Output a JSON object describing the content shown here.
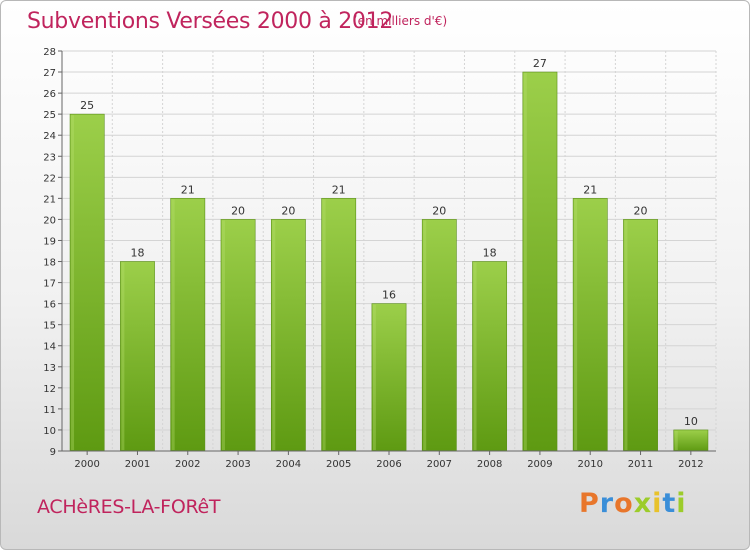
{
  "header": {
    "title": "Subventions Versées 2000 à 2012",
    "subtitle": "(en milliers d'€)"
  },
  "footer": {
    "commune": "ACHèRES-LA-FORêT",
    "logo": "Proxiti",
    "logo_colors": [
      "#e8762b",
      "#3a8ed8",
      "#e8762b",
      "#9ccc2a",
      "#e8c22b",
      "#3a8ed8",
      "#9ccc2a"
    ]
  },
  "chart_data": {
    "type": "bar",
    "title": "Subventions Versées 2000 à 2012",
    "subtitle": "(en milliers d'€)",
    "categories": [
      "2000",
      "2001",
      "2002",
      "2003",
      "2004",
      "2005",
      "2006",
      "2007",
      "2008",
      "2009",
      "2010",
      "2011",
      "2012"
    ],
    "values": [
      25,
      18,
      21,
      20,
      20,
      21,
      16,
      20,
      18,
      27,
      21,
      20,
      10
    ],
    "ylim": [
      9,
      28
    ],
    "yticks": [
      9,
      10,
      11,
      12,
      13,
      14,
      15,
      16,
      17,
      18,
      19,
      20,
      21,
      22,
      23,
      24,
      25,
      26,
      27,
      28
    ],
    "grid": true,
    "bar_color_top": "#9ccf4a",
    "bar_color_bottom": "#5e9a12"
  }
}
